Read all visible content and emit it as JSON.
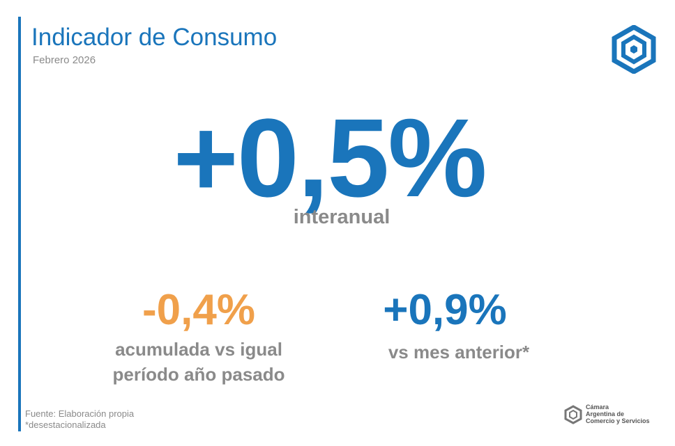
{
  "header": {
    "title": "Indicador de Consumo",
    "subtitle": "Febrero 2026"
  },
  "main": {
    "value": "+0,5%",
    "label": "interanual"
  },
  "indicators": [
    {
      "value": "-0,4%",
      "label_lines": [
        "acumulada vs igual",
        "período año pasado"
      ]
    },
    {
      "value": "+0,9%",
      "label_lines": [
        "vs mes anterior*"
      ]
    }
  ],
  "footer": {
    "source": "Fuente: Elaboración propia",
    "note": "*desestacionalizada"
  },
  "brand": {
    "lines": [
      "Cámara",
      "Argentina de",
      "Comercio y Servicios"
    ]
  }
}
